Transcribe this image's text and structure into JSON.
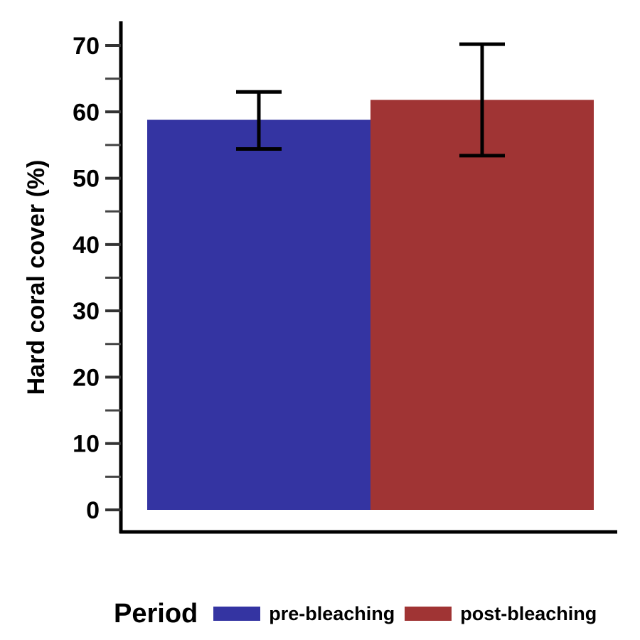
{
  "chart_data": {
    "type": "bar",
    "title": "",
    "xlabel": "",
    "ylabel": "Hard coral cover (%)",
    "ylim": [
      0,
      70
    ],
    "yticks": [
      0,
      10,
      20,
      30,
      40,
      50,
      60,
      70
    ],
    "grid": false,
    "categories": [
      "pre-bleaching",
      "post-bleaching"
    ],
    "values": [
      58.8,
      61.8
    ],
    "error_low": [
      54.4,
      53.4
    ],
    "error_high": [
      63.0,
      70.2
    ],
    "colors": [
      "#3434a2",
      "#a03434"
    ],
    "legend": {
      "title": "Period",
      "position": "bottom",
      "items": [
        {
          "label": "pre-bleaching",
          "color": "#3434a2"
        },
        {
          "label": "post-bleaching",
          "color": "#a03434"
        }
      ]
    }
  }
}
